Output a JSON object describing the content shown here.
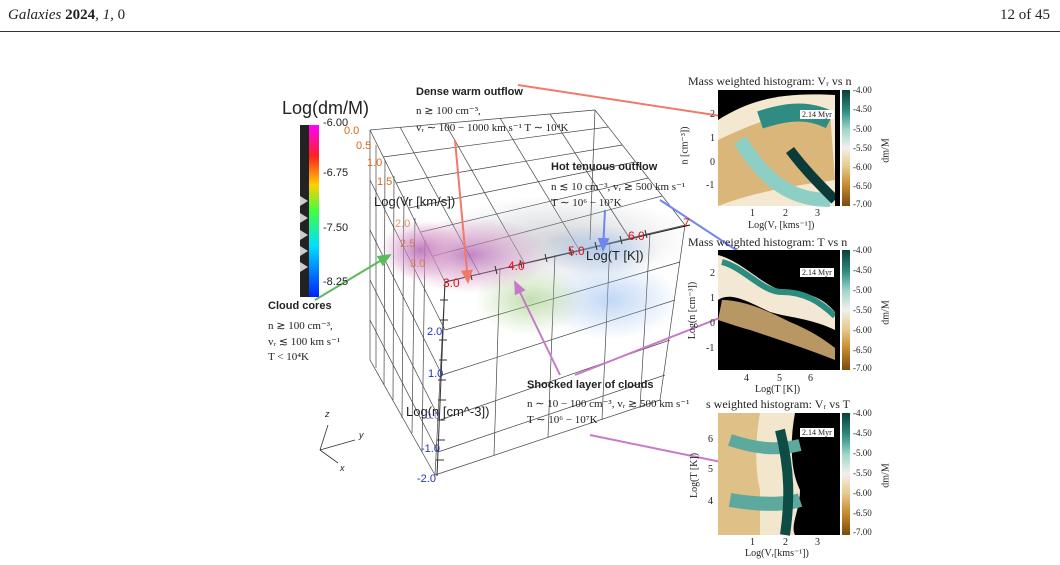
{
  "header": {
    "journal": "Galaxies",
    "year": "2024",
    "volume": "1",
    "page_ref": "0",
    "page_of": "12 of 45"
  },
  "cube": {
    "colorbar_title": "Log(dm/M)",
    "colorbar_ticks": [
      "-6.00",
      "-6.75",
      "-7.50",
      "-8.25"
    ],
    "vr_label": "Log(Vr [km/s])",
    "vr_ticks": [
      "0.0",
      "0.5",
      "1.0",
      "1.5",
      "2.0",
      "2.5",
      "3.0"
    ],
    "t_label": "Log(T [K])",
    "t_ticks": [
      "3.0",
      "4.0",
      "5.0",
      "6.0",
      "7"
    ],
    "n_label": "Log(n [cm^-3])",
    "n_ticks": [
      "2.0",
      "1.0",
      "0.0",
      "-1.0",
      "-2.0"
    ],
    "axes": [
      "z",
      "y",
      "x"
    ]
  },
  "annotations": {
    "dense_warm": {
      "title": "Dense warm outflow",
      "line1": "n ≳ 100 cm⁻³,",
      "line2": "vᵣ ∼ 100 − 1000 km s⁻¹  T ∼ 10⁴K"
    },
    "hot_tenuous": {
      "title": "Hot tenuous outflow",
      "line1": "n ≲ 10 cm⁻³,  vᵣ ≳ 500 km s⁻¹",
      "line2": "T ∼ 10⁶ − 10⁷K"
    },
    "cloud_cores": {
      "title": "Cloud cores",
      "line1": "n ≳ 100 cm⁻³,",
      "line2": "vᵣ ≲ 100 km s⁻¹",
      "line3": "T < 10⁴K"
    },
    "shocked": {
      "title": "Shocked layer of clouds",
      "line1": "n ∼ 10 − 100 cm⁻³,  vᵣ ≳ 500 km s⁻¹",
      "line2": "T ∼ 10⁶ − 10⁷K"
    }
  },
  "histograms": [
    {
      "title": "Mass weighted histogram: Vᵣ vs n",
      "xlabel": "Log(Vᵣ [kms⁻¹])",
      "ylabel": "n [cm⁻³])",
      "xticks": [
        "1",
        "2",
        "3"
      ],
      "yticks": [
        "2",
        "1",
        "0",
        "-1"
      ],
      "time": "2.14 Myr",
      "cb_label": "dm/M",
      "cb_ticks": [
        "-4.00",
        "-4.50",
        "-5.00",
        "-5.50",
        "-6.00",
        "-6.50",
        "-7.00"
      ]
    },
    {
      "title": "Mass weighted histogram: T vs n",
      "xlabel": "Log(T [K])",
      "ylabel": "Log(n [cm⁻³])",
      "xticks": [
        "4",
        "5",
        "6"
      ],
      "yticks": [
        "2",
        "1",
        "0",
        "-1"
      ],
      "time": "2.14 Myr",
      "cb_label": "dm/M",
      "cb_ticks": [
        "-4.00",
        "-4.50",
        "-5.00",
        "-5.50",
        "-6.00",
        "-6.50",
        "-7.00"
      ]
    },
    {
      "title": "s weighted histogram: Vᵣ vs T",
      "xlabel": "Log(Vᵣ[kms⁻¹])",
      "ylabel": "Log(T [K])",
      "xticks": [
        "1",
        "2",
        "3"
      ],
      "yticks": [
        "6",
        "5",
        "4"
      ],
      "time": "2.14 Myr",
      "cb_label": "dm/M",
      "cb_ticks": [
        "-4.00",
        "-4.50",
        "-5.00",
        "-5.50",
        "-6.00",
        "-6.50",
        "-7.00"
      ]
    }
  ],
  "colors": {
    "dense_arrow": "#f07a6a",
    "hot_arrow": "#6e86ee",
    "cloud_arrow": "#5cba5c",
    "shock_arrow": "#c77ac9",
    "vr_ticks": "#d9661a",
    "t_ticks": "#e01010",
    "n_ticks": "#2233bb"
  }
}
